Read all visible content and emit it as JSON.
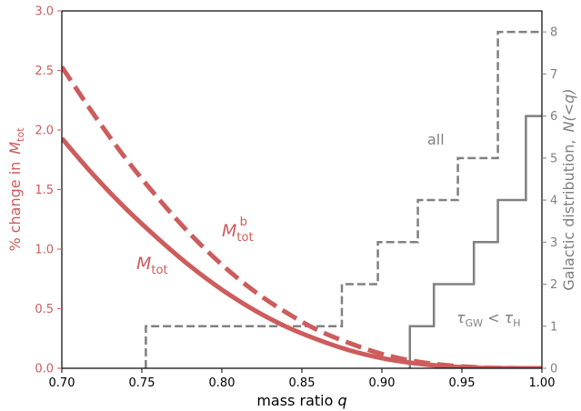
{
  "chart_data": {
    "type": "line",
    "xlabel": "mass ratio",
    "xlabel_var": "q",
    "ylabel_left": "% change in",
    "ylabel_left_var": "M",
    "ylabel_left_sub": "tot",
    "ylabel_right": "Galactic distribution,",
    "ylabel_right_var": "N(<q)",
    "xlim": [
      0.7,
      1.0
    ],
    "ylim_left": [
      0.0,
      3.0
    ],
    "ylim_right": [
      0,
      8.5
    ],
    "x_ticks": [
      "0.70",
      "0.75",
      "0.80",
      "0.85",
      "0.90",
      "0.95",
      "1.00"
    ],
    "y_left_ticks": [
      "0.0",
      "0.5",
      "1.0",
      "1.5",
      "2.0",
      "2.5",
      "3.0"
    ],
    "y_right_ticks": [
      "0",
      "1",
      "2",
      "3",
      "4",
      "5",
      "6",
      "7",
      "8"
    ],
    "grid": false,
    "colors": {
      "red": "#cd5c5c",
      "gray": "#808080",
      "axis": "#000000"
    },
    "series": [
      {
        "name": "M_tot",
        "label_base": "M",
        "label_sub": "tot",
        "axis": "left",
        "style": "solid",
        "x": [
          0.7,
          0.72,
          0.74,
          0.76,
          0.78,
          0.8,
          0.82,
          0.84,
          0.86,
          0.88,
          0.9,
          0.92,
          0.94,
          0.96,
          0.98,
          1.0
        ],
        "y": [
          1.93,
          1.62,
          1.34,
          1.09,
          0.86,
          0.66,
          0.49,
          0.35,
          0.24,
          0.15,
          0.085,
          0.043,
          0.017,
          0.004,
          0.0005,
          0.0
        ]
      },
      {
        "name": "M_tot^b",
        "label_base": "M",
        "label_sub": "tot",
        "label_sup": "b",
        "axis": "left",
        "style": "dashed",
        "x": [
          0.7,
          0.72,
          0.74,
          0.76,
          0.78,
          0.8,
          0.82,
          0.84,
          0.86,
          0.88,
          0.9,
          0.92,
          0.94,
          0.96,
          0.98,
          1.0
        ],
        "y": [
          2.53,
          2.13,
          1.76,
          1.43,
          1.13,
          0.87,
          0.65,
          0.47,
          0.32,
          0.21,
          0.12,
          0.06,
          0.026,
          0.007,
          0.001,
          0.0
        ]
      },
      {
        "name": "all",
        "axis": "right",
        "style": "dashed-step",
        "steps": [
          [
            0.7525,
            1
          ],
          [
            0.875,
            2
          ],
          [
            0.8975,
            3
          ],
          [
            0.9225,
            4
          ],
          [
            0.9475,
            5
          ],
          [
            0.9725,
            8
          ],
          [
            1.0,
            8
          ]
        ]
      },
      {
        "name": "tau_GW < tau_H",
        "axis": "right",
        "style": "solid-step",
        "steps": [
          [
            0.9175,
            1
          ],
          [
            0.9325,
            2
          ],
          [
            0.9575,
            3
          ],
          [
            0.9725,
            4
          ],
          [
            0.99,
            6
          ],
          [
            1.0,
            6
          ]
        ]
      }
    ],
    "annotations": {
      "all_label": "all",
      "tgw_tau": "τ",
      "tgw_sub1": "GW",
      "tgw_lt": " < ",
      "tgw_sub2": "H"
    }
  }
}
